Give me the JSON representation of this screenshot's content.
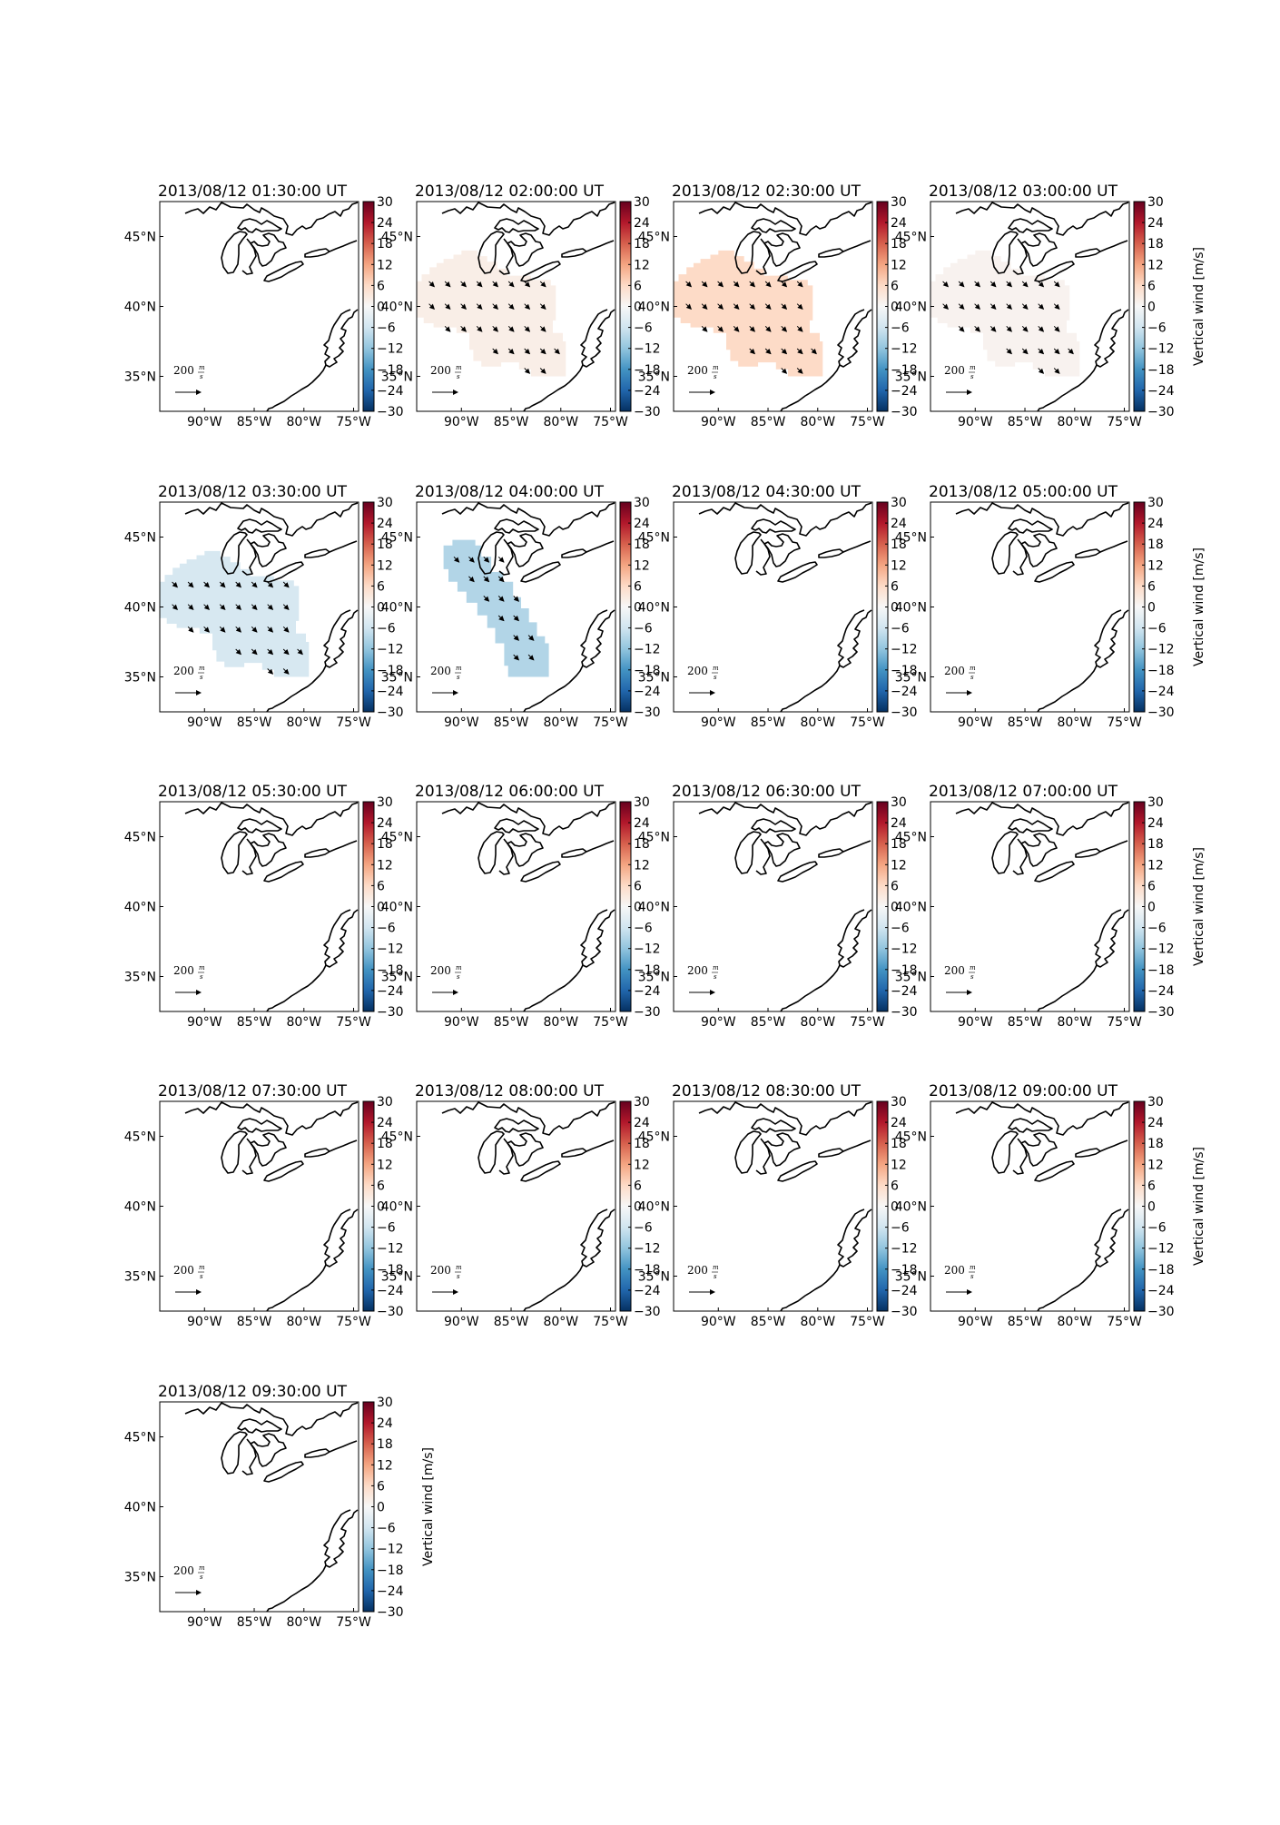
{
  "chart_data": {
    "type": "heatmap",
    "description_free": true,
    "layout": {
      "rows": 5,
      "cols": 4
    },
    "lon_range": [
      -94.5,
      -74.5
    ],
    "lat_range": [
      32.5,
      47.5
    ],
    "x_ticks": [
      -90,
      -85,
      -80,
      -75
    ],
    "x_tick_labels": [
      "90°W",
      "85°W",
      "80°W",
      "75°W"
    ],
    "y_ticks": [
      35,
      40,
      45
    ],
    "y_tick_labels": [
      "35°N",
      "40°N",
      "45°N"
    ],
    "colorbar": {
      "label": "Vertical wind [m/s]",
      "range": [
        -30,
        30
      ],
      "ticks": [
        30,
        24,
        18,
        12,
        6,
        0,
        -6,
        -12,
        -18,
        -24,
        -30
      ],
      "tick_labels": [
        "30",
        "24",
        "18",
        "12",
        "6",
        "0",
        "−6",
        "−12",
        "−18",
        "−24",
        "−30"
      ],
      "colormap": [
        "#053061",
        "#2166ac",
        "#4393c3",
        "#92c5de",
        "#d1e5f0",
        "#f7f7f7",
        "#fddbc7",
        "#f4a582",
        "#d6604d",
        "#b2182b",
        "#67001f"
      ]
    },
    "quiver_key": {
      "value": "200",
      "unit_num": "m",
      "unit_den": "s"
    },
    "vector_direction_deg": -45,
    "panels": [
      {
        "title": "2013/08/12 01:30:00 UT",
        "value": 0,
        "region": null
      },
      {
        "title": "2013/08/12 02:00:00 UT",
        "value": 2,
        "region": "A"
      },
      {
        "title": "2013/08/12 02:30:00 UT",
        "value": 6,
        "region": "A"
      },
      {
        "title": "2013/08/12 03:00:00 UT",
        "value": 1,
        "region": "A"
      },
      {
        "title": "2013/08/12 03:30:00 UT",
        "value": -5,
        "region": "A"
      },
      {
        "title": "2013/08/12 04:00:00 UT",
        "value": -9,
        "region": "B"
      },
      {
        "title": "2013/08/12 04:30:00 UT",
        "value": 0,
        "region": null
      },
      {
        "title": "2013/08/12 05:00:00 UT",
        "value": 0,
        "region": null
      },
      {
        "title": "2013/08/12 05:30:00 UT",
        "value": 0,
        "region": null
      },
      {
        "title": "2013/08/12 06:00:00 UT",
        "value": 0,
        "region": null
      },
      {
        "title": "2013/08/12 06:30:00 UT",
        "value": 0,
        "region": null
      },
      {
        "title": "2013/08/12 07:00:00 UT",
        "value": 0,
        "region": null
      },
      {
        "title": "2013/08/12 07:30:00 UT",
        "value": 0,
        "region": null
      },
      {
        "title": "2013/08/12 08:00:00 UT",
        "value": 0,
        "region": null
      },
      {
        "title": "2013/08/12 08:30:00 UT",
        "value": 0,
        "region": null
      },
      {
        "title": "2013/08/12 09:00:00 UT",
        "value": 0,
        "region": null
      },
      {
        "title": "2013/08/12 09:30:00 UT",
        "value": 0,
        "region": null
      }
    ]
  }
}
